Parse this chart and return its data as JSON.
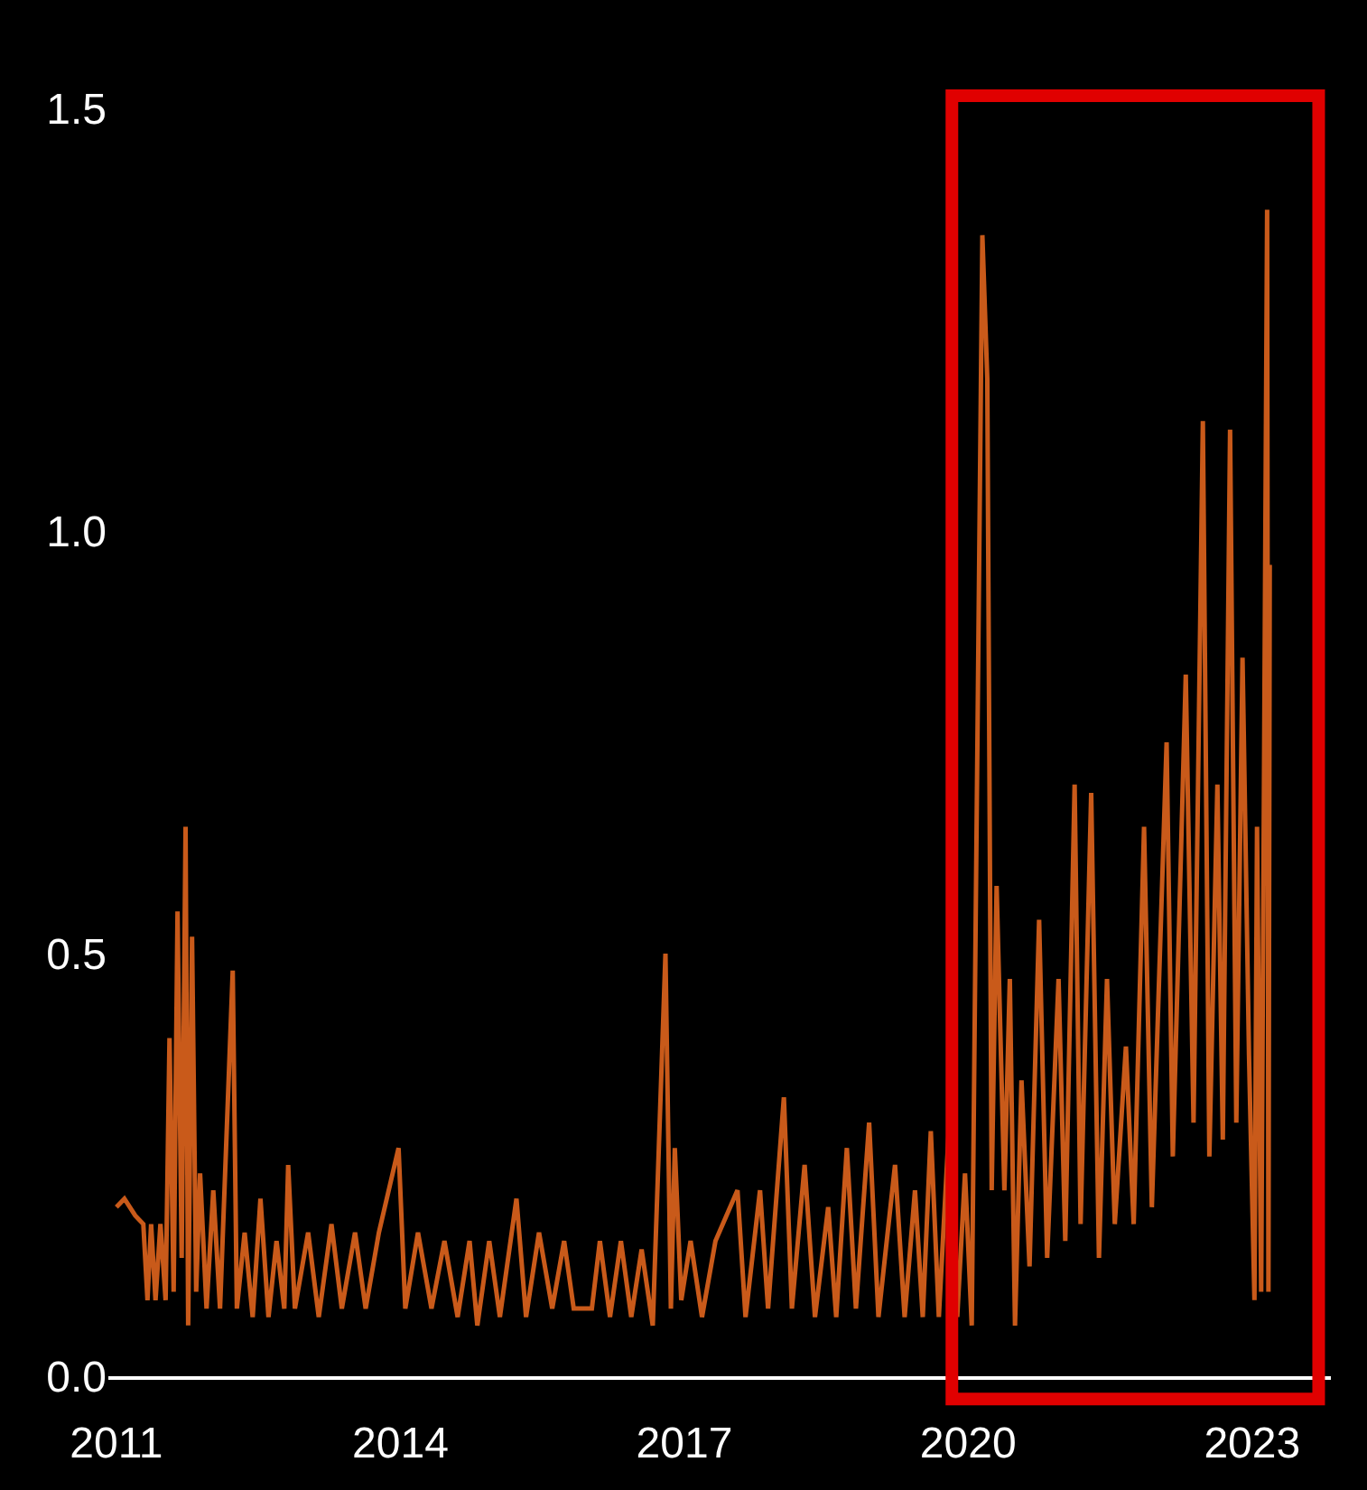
{
  "chart_data": {
    "type": "line",
    "x": [
      "2011-01-01",
      "2011-02-01",
      "2011-03-15",
      "2011-04-15",
      "2011-05-01",
      "2011-05-15",
      "2011-06-01",
      "2011-06-20",
      "2011-07-10",
      "2011-07-25",
      "2011-08-10",
      "2011-08-25",
      "2011-09-10",
      "2011-09-25",
      "2011-10-05",
      "2011-10-20",
      "2011-11-05",
      "2011-11-20",
      "2011-12-15",
      "2012-01-10",
      "2012-02-05",
      "2012-03-25",
      "2012-04-10",
      "2012-05-10",
      "2012-06-10",
      "2012-07-10",
      "2012-08-10",
      "2012-09-10",
      "2012-10-10",
      "2012-10-25",
      "2012-11-20",
      "2013-01-10",
      "2013-02-20",
      "2013-04-10",
      "2013-05-20",
      "2013-07-10",
      "2013-08-20",
      "2013-10-10",
      "2013-12-25",
      "2014-01-20",
      "2014-03-10",
      "2014-05-01",
      "2014-06-20",
      "2014-08-10",
      "2014-09-25",
      "2014-10-25",
      "2014-12-10",
      "2015-01-20",
      "2015-03-25",
      "2015-05-01",
      "2015-06-20",
      "2015-08-10",
      "2015-09-25",
      "2015-11-01",
      "2016-01-10",
      "2016-02-10",
      "2016-03-20",
      "2016-05-01",
      "2016-06-10",
      "2016-07-20",
      "2016-09-01",
      "2016-10-20",
      "2016-11-10",
      "2016-11-25",
      "2016-12-20",
      "2017-01-25",
      "2017-03-10",
      "2017-05-01",
      "2017-07-25",
      "2017-08-25",
      "2017-10-20",
      "2017-11-20",
      "2018-01-20",
      "2018-02-20",
      "2018-04-10",
      "2018-05-20",
      "2018-07-10",
      "2018-08-10",
      "2018-09-20",
      "2018-10-25",
      "2018-12-15",
      "2019-01-20",
      "2019-03-25",
      "2019-05-01",
      "2019-06-10",
      "2019-07-10",
      "2019-08-10",
      "2019-09-10",
      "2019-10-20",
      "2019-11-20",
      "2019-12-20",
      "2020-01-15",
      "2020-02-25",
      "2020-03-15",
      "2020-04-01",
      "2020-04-20",
      "2020-05-20",
      "2020-06-10",
      "2020-06-30",
      "2020-07-25",
      "2020-08-25",
      "2020-10-01",
      "2020-11-01",
      "2020-12-15",
      "2021-01-10",
      "2021-02-15",
      "2021-03-10",
      "2021-04-20",
      "2021-05-20",
      "2021-06-20",
      "2021-07-20",
      "2021-09-01",
      "2021-10-01",
      "2021-11-10",
      "2021-12-10",
      "2022-02-05",
      "2022-03-01",
      "2022-04-20",
      "2022-05-20",
      "2022-06-25",
      "2022-07-20",
      "2022-08-20",
      "2022-09-10",
      "2022-10-08",
      "2022-11-01",
      "2022-11-25",
      "2022-12-20",
      "2023-01-10",
      "2023-01-20",
      "2023-02-05",
      "2023-02-28",
      "2023-03-05",
      "2023-03-10"
    ],
    "series": [
      {
        "color": "#c95a1a",
        "values": [
          0.2,
          0.21,
          0.19,
          0.18,
          0.09,
          0.18,
          0.09,
          0.18,
          0.09,
          0.4,
          0.1,
          0.55,
          0.14,
          0.65,
          0.06,
          0.52,
          0.1,
          0.24,
          0.08,
          0.22,
          0.08,
          0.48,
          0.08,
          0.17,
          0.07,
          0.21,
          0.07,
          0.16,
          0.08,
          0.25,
          0.08,
          0.17,
          0.07,
          0.18,
          0.08,
          0.17,
          0.08,
          0.17,
          0.27,
          0.08,
          0.17,
          0.08,
          0.16,
          0.07,
          0.16,
          0.06,
          0.16,
          0.07,
          0.21,
          0.07,
          0.17,
          0.08,
          0.16,
          0.08,
          0.08,
          0.16,
          0.07,
          0.16,
          0.07,
          0.15,
          0.06,
          0.5,
          0.08,
          0.27,
          0.09,
          0.16,
          0.07,
          0.16,
          0.22,
          0.07,
          0.22,
          0.08,
          0.33,
          0.08,
          0.25,
          0.07,
          0.2,
          0.07,
          0.27,
          0.08,
          0.3,
          0.07,
          0.25,
          0.07,
          0.22,
          0.07,
          0.29,
          0.07,
          0.3,
          0.07,
          0.24,
          0.06,
          1.35,
          1.18,
          0.22,
          0.58,
          0.22,
          0.47,
          0.06,
          0.35,
          0.13,
          0.54,
          0.14,
          0.47,
          0.16,
          0.7,
          0.18,
          0.69,
          0.14,
          0.47,
          0.18,
          0.39,
          0.18,
          0.65,
          0.2,
          0.75,
          0.26,
          0.83,
          0.3,
          1.13,
          0.26,
          0.7,
          0.28,
          1.12,
          0.3,
          0.85,
          0.38,
          0.09,
          0.65,
          0.1,
          1.38,
          0.1,
          0.96
        ]
      }
    ],
    "xlim": [
      "2010-12-01",
      "2023-11-01"
    ],
    "xticks": [
      {
        "value": "2011-01-01",
        "label": "2011"
      },
      {
        "value": "2014-01-01",
        "label": "2014"
      },
      {
        "value": "2017-01-01",
        "label": "2017"
      },
      {
        "value": "2020-01-01",
        "label": "2020"
      },
      {
        "value": "2023-01-01",
        "label": "2023"
      }
    ],
    "ylim": [
      0,
      1.5
    ],
    "yticks": [
      {
        "value": 0,
        "label": "0.0"
      },
      {
        "value": 0.5,
        "label": "0.5"
      },
      {
        "value": 1.0,
        "label": "1.0"
      },
      {
        "value": 1.5,
        "label": "1.5"
      }
    ],
    "grid": false,
    "marker": "none",
    "line_style": "solid"
  }
}
